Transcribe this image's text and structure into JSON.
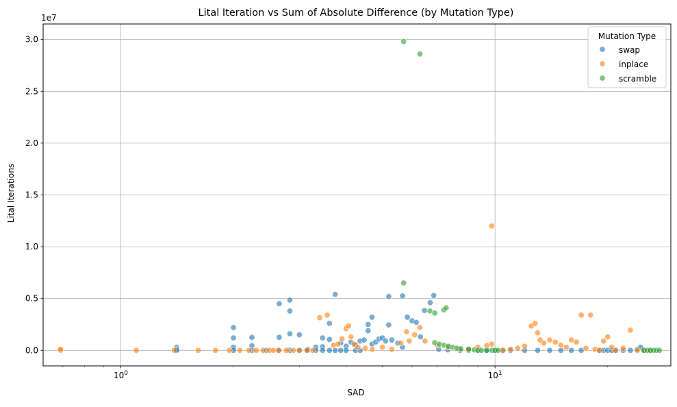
{
  "chart_data": {
    "type": "scatter",
    "title": "Lital Iteration vs Sum of Absolute Difference (by Mutation Type)",
    "xlabel": "SAD",
    "ylabel": "Lital Iterations",
    "x_scale": "log",
    "xlim": [
      0.62,
      29.5
    ],
    "ylim": [
      -1500000,
      31500000
    ],
    "y_offset_label": "1e7",
    "y_ticks": [
      {
        "value": 0,
        "label": "0.0"
      },
      {
        "value": 5000000,
        "label": "0.5"
      },
      {
        "value": 10000000,
        "label": "1.0"
      },
      {
        "value": 15000000,
        "label": "1.5"
      },
      {
        "value": 20000000,
        "label": "2.0"
      },
      {
        "value": 25000000,
        "label": "2.5"
      },
      {
        "value": 30000000,
        "label": "3.0"
      }
    ],
    "x_ticks": [
      {
        "value": 1,
        "base": "10",
        "exp": "0"
      },
      {
        "value": 10,
        "base": "10",
        "exp": "1"
      }
    ],
    "grid": true,
    "legend": {
      "title": "Mutation Type",
      "placement": "top-right"
    },
    "series": [
      {
        "name": "swap",
        "color": "#1f77b4",
        "points": [
          [
            1.41,
            300000
          ],
          [
            1.41,
            100000
          ],
          [
            1.41,
            0
          ],
          [
            2.0,
            2200000
          ],
          [
            2.0,
            1200000
          ],
          [
            2.0,
            300000
          ],
          [
            2.0,
            0
          ],
          [
            2.24,
            1250000
          ],
          [
            2.24,
            450000
          ],
          [
            2.24,
            0
          ],
          [
            2.45,
            0
          ],
          [
            2.65,
            4500000
          ],
          [
            2.65,
            1250000
          ],
          [
            2.65,
            0
          ],
          [
            2.83,
            4850000
          ],
          [
            2.83,
            3800000
          ],
          [
            2.83,
            1600000
          ],
          [
            2.83,
            0
          ],
          [
            3.0,
            1500000
          ],
          [
            3.0,
            0
          ],
          [
            3.16,
            100000
          ],
          [
            3.16,
            0
          ],
          [
            3.32,
            300000
          ],
          [
            3.32,
            0
          ],
          [
            3.46,
            1200000
          ],
          [
            3.46,
            350000
          ],
          [
            3.46,
            0
          ],
          [
            3.61,
            2600000
          ],
          [
            3.61,
            1050000
          ],
          [
            3.61,
            0
          ],
          [
            3.74,
            5400000
          ],
          [
            3.74,
            0
          ],
          [
            3.87,
            700000
          ],
          [
            3.87,
            0
          ],
          [
            4.0,
            400000
          ],
          [
            4.0,
            0
          ],
          [
            4.12,
            800000
          ],
          [
            4.24,
            500000
          ],
          [
            4.24,
            0
          ],
          [
            4.36,
            900000
          ],
          [
            4.36,
            0
          ],
          [
            4.47,
            1000000
          ],
          [
            4.58,
            2500000
          ],
          [
            4.58,
            1900000
          ],
          [
            4.69,
            3200000
          ],
          [
            4.69,
            600000
          ],
          [
            4.8,
            800000
          ],
          [
            4.9,
            1100000
          ],
          [
            5.0,
            1200000
          ],
          [
            5.1,
            900000
          ],
          [
            5.2,
            5200000
          ],
          [
            5.2,
            2450000
          ],
          [
            5.3,
            1000000
          ],
          [
            5.5,
            700000
          ],
          [
            5.66,
            5250000
          ],
          [
            5.66,
            300000
          ],
          [
            5.83,
            3200000
          ],
          [
            6.0,
            2850000
          ],
          [
            6.16,
            2700000
          ],
          [
            6.32,
            1300000
          ],
          [
            6.48,
            3850000
          ],
          [
            6.71,
            4600000
          ],
          [
            6.86,
            5300000
          ],
          [
            7.07,
            100000
          ],
          [
            7.48,
            50000
          ],
          [
            8.06,
            0
          ],
          [
            8.5,
            0
          ],
          [
            9.0,
            0
          ],
          [
            9.5,
            0
          ],
          [
            10.0,
            0
          ],
          [
            10.5,
            0
          ],
          [
            11.0,
            0
          ],
          [
            12.0,
            0
          ],
          [
            13.0,
            0
          ],
          [
            14.0,
            0
          ],
          [
            15.0,
            0
          ],
          [
            16.0,
            0
          ],
          [
            17.0,
            0
          ],
          [
            19.0,
            0
          ],
          [
            19.5,
            0
          ],
          [
            20.0,
            0
          ],
          [
            20.5,
            0
          ],
          [
            21.0,
            0
          ],
          [
            22.0,
            0
          ],
          [
            23.0,
            0
          ],
          [
            24.0,
            100000
          ],
          [
            24.5,
            300000
          ],
          [
            25.0,
            0
          ],
          [
            26.0,
            0
          ]
        ]
      },
      {
        "name": "inplace",
        "color": "#ff7f0e",
        "points": [
          [
            0.69,
            0
          ],
          [
            0.69,
            100000
          ],
          [
            1.1,
            0
          ],
          [
            1.39,
            0
          ],
          [
            1.61,
            0
          ],
          [
            1.79,
            0
          ],
          [
            1.95,
            0
          ],
          [
            2.08,
            0
          ],
          [
            2.2,
            0
          ],
          [
            2.3,
            0
          ],
          [
            2.4,
            0
          ],
          [
            2.5,
            0
          ],
          [
            2.56,
            0
          ],
          [
            2.64,
            0
          ],
          [
            2.77,
            0
          ],
          [
            2.89,
            0
          ],
          [
            3.0,
            0
          ],
          [
            3.14,
            0
          ],
          [
            3.26,
            0
          ],
          [
            3.4,
            3150000
          ],
          [
            3.56,
            3400000
          ],
          [
            3.7,
            500000
          ],
          [
            3.8,
            600000
          ],
          [
            3.9,
            1100000
          ],
          [
            4.0,
            2100000
          ],
          [
            4.06,
            2350000
          ],
          [
            4.12,
            1300000
          ],
          [
            4.2,
            600000
          ],
          [
            4.3,
            300000
          ],
          [
            4.5,
            200000
          ],
          [
            4.7,
            100000
          ],
          [
            5.0,
            300000
          ],
          [
            5.3,
            100000
          ],
          [
            5.6,
            700000
          ],
          [
            5.8,
            1800000
          ],
          [
            5.9,
            900000
          ],
          [
            6.1,
            1500000
          ],
          [
            6.3,
            2200000
          ],
          [
            6.5,
            900000
          ],
          [
            7.0,
            500000
          ],
          [
            7.5,
            300000
          ],
          [
            8.0,
            150000
          ],
          [
            8.5,
            100000
          ],
          [
            9.0,
            300000
          ],
          [
            9.5,
            450000
          ],
          [
            9.8,
            12000000
          ],
          [
            9.8,
            600000
          ],
          [
            10.5,
            0
          ],
          [
            11.0,
            100000
          ],
          [
            11.5,
            200000
          ],
          [
            12.0,
            400000
          ],
          [
            12.5,
            2350000
          ],
          [
            12.8,
            2600000
          ],
          [
            13.0,
            1700000
          ],
          [
            13.2,
            1000000
          ],
          [
            13.5,
            700000
          ],
          [
            14.0,
            1000000
          ],
          [
            14.5,
            800000
          ],
          [
            15.0,
            500000
          ],
          [
            15.5,
            300000
          ],
          [
            16.0,
            1000000
          ],
          [
            16.5,
            800000
          ],
          [
            17.0,
            3400000
          ],
          [
            17.5,
            200000
          ],
          [
            18.0,
            3400000
          ],
          [
            18.5,
            100000
          ],
          [
            19.0,
            0
          ],
          [
            19.5,
            900000
          ],
          [
            20.0,
            1300000
          ],
          [
            20.5,
            300000
          ],
          [
            21.0,
            0
          ],
          [
            22.0,
            200000
          ],
          [
            23.0,
            1950000
          ],
          [
            24.0,
            0
          ],
          [
            25.0,
            0
          ]
        ]
      },
      {
        "name": "scramble",
        "color": "#2ca02c",
        "points": [
          [
            5.7,
            29800000
          ],
          [
            6.3,
            28600000
          ],
          [
            5.7,
            6500000
          ],
          [
            6.7,
            3800000
          ],
          [
            6.9,
            3600000
          ],
          [
            7.3,
            3900000
          ],
          [
            7.4,
            4100000
          ],
          [
            6.9,
            750000
          ],
          [
            7.1,
            600000
          ],
          [
            7.3,
            500000
          ],
          [
            7.5,
            400000
          ],
          [
            7.7,
            300000
          ],
          [
            7.9,
            200000
          ],
          [
            8.1,
            150000
          ],
          [
            8.5,
            100000
          ],
          [
            8.8,
            50000
          ],
          [
            9.0,
            0
          ],
          [
            9.2,
            0
          ],
          [
            9.5,
            0
          ],
          [
            9.8,
            0
          ],
          [
            10.0,
            0
          ],
          [
            10.2,
            0
          ],
          [
            25.0,
            0
          ],
          [
            25.5,
            0
          ],
          [
            26.0,
            0
          ],
          [
            26.5,
            0
          ],
          [
            27.0,
            0
          ],
          [
            27.5,
            0
          ]
        ]
      }
    ]
  }
}
